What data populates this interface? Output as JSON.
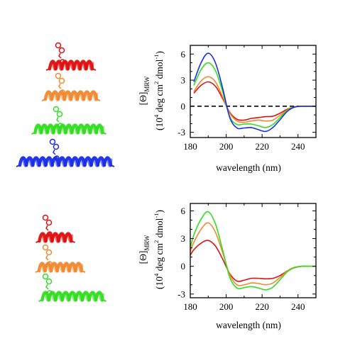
{
  "colors": {
    "red": "#e01010",
    "orange": "#f08a30",
    "green": "#33dd22",
    "blue": "#1a2ee8",
    "axis": "#000000"
  },
  "structures": {
    "top": [
      {
        "name": "red-helix-peptide",
        "color": "red",
        "length": 60
      },
      {
        "name": "orange-helix-peptide",
        "color": "orange",
        "length": 72
      },
      {
        "name": "green-helix-peptide",
        "color": "green",
        "length": 95
      },
      {
        "name": "blue-helix-peptide",
        "color": "blue",
        "length": 128
      }
    ],
    "bottom": [
      {
        "name": "red-helix-peptide",
        "color": "red",
        "length": 45
      },
      {
        "name": "orange-helix-peptide",
        "color": "orange",
        "length": 60
      },
      {
        "name": "green-helix-peptide",
        "color": "green",
        "length": 85
      }
    ]
  },
  "chart_data": [
    {
      "type": "line",
      "title": "",
      "xlabel": "wavelength (nm)",
      "ylabel": {
        "main": "[Θ]",
        "sub": "MRW",
        "line2_a": "(10",
        "line2_sup1": "4",
        "line2_b": " deg  cm",
        "line2_sup2": "2",
        "line2_c": " dmol",
        "line2_sup3": "-1",
        "line2_d": ")"
      },
      "xlim": [
        180,
        250
      ],
      "ylim": [
        -3.6,
        7
      ],
      "xticks": [
        180,
        200,
        220,
        240
      ],
      "yticks": [
        -3,
        0,
        3,
        6
      ],
      "xtick_labels": [
        "180",
        "200",
        "220",
        "240"
      ],
      "ytick_labels": [
        "-3",
        "0",
        "3",
        "6"
      ],
      "reference_line": {
        "y": 0,
        "style": "dashed"
      },
      "series": [
        {
          "color": "red",
          "x": [
            182,
            186,
            190,
            194,
            198,
            202,
            206,
            210,
            214,
            218,
            222,
            226,
            230,
            234,
            238,
            242,
            246,
            250
          ],
          "y": [
            1.5,
            2.4,
            2.8,
            2.3,
            0.9,
            -0.7,
            -1.5,
            -1.6,
            -1.4,
            -1.3,
            -1.2,
            -1.15,
            -0.8,
            -0.35,
            -0.1,
            0,
            0,
            0
          ]
        },
        {
          "color": "orange",
          "x": [
            182,
            186,
            190,
            194,
            198,
            202,
            206,
            210,
            214,
            218,
            222,
            226,
            230,
            234,
            238,
            242,
            246,
            250
          ],
          "y": [
            1.7,
            2.9,
            3.4,
            2.8,
            1.1,
            -0.8,
            -1.7,
            -1.85,
            -1.7,
            -1.6,
            -1.7,
            -1.6,
            -1.05,
            -0.45,
            -0.1,
            0,
            0,
            0
          ]
        },
        {
          "color": "green",
          "x": [
            182,
            186,
            190,
            194,
            198,
            202,
            206,
            210,
            214,
            218,
            222,
            226,
            230,
            234,
            238,
            242,
            246,
            250
          ],
          "y": [
            2.4,
            4.2,
            5.0,
            4.1,
            1.7,
            -1.2,
            -2.1,
            -2.05,
            -2.05,
            -2.25,
            -2.45,
            -2.1,
            -1.3,
            -0.5,
            -0.1,
            0,
            0,
            0
          ]
        },
        {
          "color": "blue",
          "x": [
            182,
            186,
            190,
            194,
            198,
            202,
            206,
            210,
            214,
            218,
            222,
            226,
            230,
            234,
            238,
            242,
            246,
            250
          ],
          "y": [
            2.8,
            5.0,
            6.1,
            5.0,
            2.1,
            -1.3,
            -2.5,
            -2.5,
            -2.45,
            -2.7,
            -2.9,
            -2.45,
            -1.55,
            -0.6,
            -0.1,
            0,
            0,
            0
          ]
        }
      ]
    },
    {
      "type": "line",
      "title": "",
      "xlabel": "wavelength (nm)",
      "ylabel": {
        "main": "[Θ]",
        "sub": "MRW",
        "line2_a": "(10",
        "line2_sup1": "4",
        "line2_b": " deg  cm",
        "line2_sup2": "2",
        "line2_c": " dmol",
        "line2_sup3": "-1",
        "line2_d": ")"
      },
      "xlim": [
        180,
        250
      ],
      "ylim": [
        -3.4,
        6.8
      ],
      "xticks": [
        180,
        200,
        220,
        240
      ],
      "yticks": [
        -3,
        0,
        3,
        6
      ],
      "xtick_labels": [
        "180",
        "200",
        "220",
        "240"
      ],
      "ytick_labels": [
        "-3",
        "0",
        "3",
        "6"
      ],
      "series": [
        {
          "color": "red",
          "x": [
            180,
            182,
            186,
            190,
            194,
            198,
            202,
            206,
            210,
            214,
            218,
            222,
            226,
            230,
            234,
            238,
            242,
            246,
            250
          ],
          "y": [
            1.2,
            1.8,
            2.5,
            2.8,
            2.2,
            0.8,
            -0.8,
            -1.6,
            -1.5,
            -1.3,
            -1.3,
            -1.35,
            -1.3,
            -1.0,
            -0.5,
            -0.15,
            0,
            0,
            0
          ]
        },
        {
          "color": "orange",
          "x": [
            180,
            182,
            186,
            190,
            194,
            198,
            202,
            206,
            210,
            214,
            218,
            222,
            226,
            230,
            234,
            238,
            242,
            246,
            250
          ],
          "y": [
            1.6,
            2.6,
            4.0,
            4.7,
            3.7,
            1.5,
            -0.9,
            -2.0,
            -2.0,
            -1.8,
            -1.85,
            -2.0,
            -1.8,
            -1.2,
            -0.5,
            -0.1,
            0,
            0,
            0
          ]
        },
        {
          "color": "green",
          "x": [
            180,
            182,
            186,
            190,
            194,
            198,
            202,
            206,
            210,
            214,
            218,
            222,
            226,
            230,
            234,
            238,
            242,
            246,
            250
          ],
          "y": [
            2.0,
            3.4,
            5.1,
            5.9,
            4.6,
            1.8,
            -1.2,
            -2.35,
            -2.3,
            -2.2,
            -2.35,
            -2.55,
            -2.25,
            -1.45,
            -0.6,
            -0.15,
            0,
            0,
            0
          ]
        }
      ]
    }
  ]
}
